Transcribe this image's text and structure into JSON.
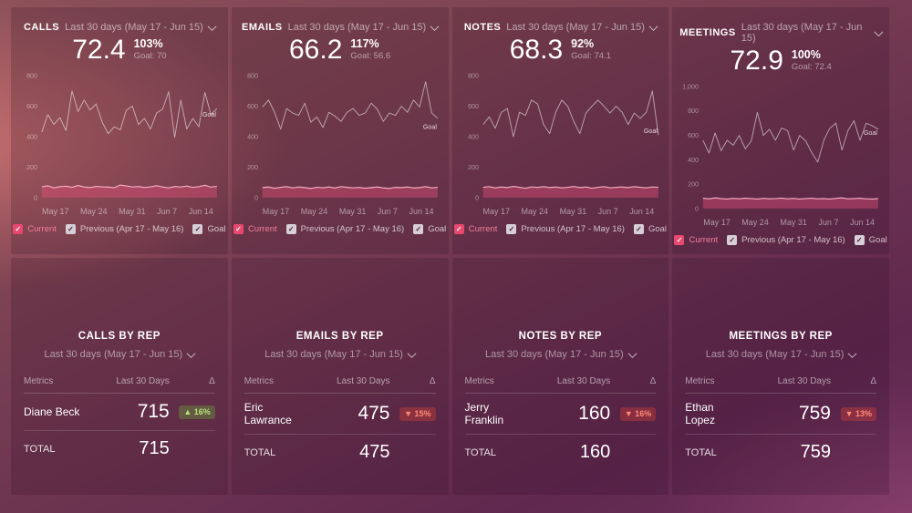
{
  "icons": {
    "check": "✓",
    "chevron_down": "⌄",
    "delta": "Δ"
  },
  "colors": {
    "accent_pink": "#e9486e",
    "current_line": "#f9aec3",
    "positive_badge_text": "#b7e27e",
    "negative_badge_text": "#ff8c76",
    "background_top": "#8b5058",
    "background_bottom": "#692e59"
  },
  "kpi_cards": [
    {
      "title": "CALLS",
      "date_range": "Last 30 days (May 17 - Jun 15) ",
      "value": "72.4",
      "percent": "103%",
      "goal_label": "Goal: 70",
      "legend": {
        "current": "Current",
        "previous": "Previous (Apr 17 - May 16)",
        "goal": "Goal"
      },
      "chart_data": {
        "type": "line",
        "x_labels": [
          "May 17",
          "May 24",
          "May 31",
          "Jun 7",
          "Jun 14"
        ],
        "ylim": [
          0,
          800
        ],
        "y_ticks": [
          {
            "label": "800",
            "value": 800
          },
          {
            "label": "600",
            "value": 600
          },
          {
            "label": "400",
            "value": 400
          },
          {
            "label": "200",
            "value": 200
          },
          {
            "label": "0",
            "value": 0
          }
        ],
        "goal_label": {
          "text": "Goal",
          "at_value": 530
        },
        "goal_value": 70,
        "series": [
          {
            "name": "Current",
            "values": [
              70,
              78,
              64,
              72,
              75,
              68,
              80,
              70,
              66,
              74,
              71,
              69,
              65,
              83,
              77,
              70,
              73,
              66,
              71,
              78,
              70,
              64,
              73,
              70,
              76,
              67,
              72,
              81,
              69,
              74
            ]
          },
          {
            "name": "Previous (Apr 17 - May 16)",
            "values": [
              430,
              545,
              480,
              525,
              440,
              700,
              565,
              640,
              575,
              615,
              495,
              420,
              465,
              445,
              575,
              600,
              480,
              520,
              450,
              555,
              580,
              695,
              395,
              640,
              450,
              520,
              465,
              690,
              545,
              585
            ]
          }
        ]
      }
    },
    {
      "title": "EMAILS",
      "date_range": "Last 30 days (May 17 - Jun 15) ",
      "value": "66.2",
      "percent": "117%",
      "goal_label": "Goal: 56.6",
      "legend": {
        "current": "Current",
        "previous": "Previous (Apr 17 - May 16)",
        "goal": "Goal"
      },
      "chart_data": {
        "type": "line",
        "x_labels": [
          "May 17",
          "May 24",
          "May 31",
          "Jun 7",
          "Jun 14"
        ],
        "ylim": [
          0,
          800
        ],
        "y_ticks": [
          {
            "label": "800",
            "value": 800
          },
          {
            "label": "600",
            "value": 600
          },
          {
            "label": "400",
            "value": 400
          },
          {
            "label": "200",
            "value": 200
          },
          {
            "label": "0",
            "value": 0
          }
        ],
        "goal_label": {
          "text": "Goal",
          "at_value": 450
        },
        "goal_value": 56.6,
        "series": [
          {
            "name": "Current",
            "values": [
              66,
              70,
              62,
              68,
              72,
              64,
              70,
              66,
              60,
              68,
              65,
              70,
              63,
              72,
              68,
              64,
              67,
              62,
              66,
              70,
              64,
              60,
              68,
              66,
              70,
              63,
              66,
              72,
              64,
              68
            ]
          },
          {
            "name": "Previous (Apr 17 - May 16)",
            "values": [
              595,
              640,
              560,
              450,
              585,
              555,
              540,
              620,
              495,
              530,
              460,
              560,
              535,
              500,
              560,
              585,
              540,
              555,
              620,
              580,
              500,
              555,
              540,
              600,
              560,
              640,
              595,
              760,
              555,
              520
            ]
          }
        ]
      }
    },
    {
      "title": "NOTES",
      "date_range": "Last 30 days (May 17 - Jun 15) ",
      "value": "68.3",
      "percent": "92%",
      "goal_label": "Goal: 74.1",
      "legend": {
        "current": "Current",
        "previous": "Previous (Apr 17 - May 16)",
        "goal": "Goal"
      },
      "chart_data": {
        "type": "line",
        "x_labels": [
          "May 17",
          "May 24",
          "May 31",
          "Jun 7",
          "Jun 14"
        ],
        "ylim": [
          0,
          800
        ],
        "y_ticks": [
          {
            "label": "800",
            "value": 800
          },
          {
            "label": "600",
            "value": 600
          },
          {
            "label": "400",
            "value": 400
          },
          {
            "label": "200",
            "value": 200
          },
          {
            "label": "0",
            "value": 0
          }
        ],
        "goal_label": {
          "text": "Goal",
          "at_value": 425
        },
        "goal_value": 74.1,
        "series": [
          {
            "name": "Current",
            "values": [
              68,
              72,
              64,
              70,
              66,
              74,
              68,
              62,
              70,
              67,
              72,
              66,
              70,
              64,
              68,
              73,
              66,
              70,
              62,
              68,
              72,
              64,
              68,
              70,
              66,
              72,
              68,
              64,
              70,
              68
            ]
          },
          {
            "name": "Previous (Apr 17 - May 16)",
            "values": [
              480,
              530,
              455,
              560,
              585,
              400,
              560,
              540,
              640,
              615,
              480,
              420,
              560,
              640,
              600,
              500,
              420,
              555,
              600,
              640,
              600,
              555,
              600,
              560,
              480,
              555,
              520,
              560,
              700,
              410
            ]
          }
        ]
      }
    },
    {
      "title": "MEETINGS",
      "date_range": "Last 30 days (May 17 - Jun 15) ",
      "value": "72.9",
      "percent": "100%",
      "goal_label": "Goal: 72.4",
      "legend": {
        "current": "Current",
        "previous": "Previous (Apr 17 - May 16)",
        "goal": "Goal"
      },
      "chart_data": {
        "type": "line",
        "x_labels": [
          "May 17",
          "May 24",
          "May 31",
          "Jun 7",
          "Jun 14"
        ],
        "ylim": [
          0,
          1000
        ],
        "y_ticks": [
          {
            "label": "1,000",
            "value": 1000
          },
          {
            "label": "800",
            "value": 800
          },
          {
            "label": "600",
            "value": 600
          },
          {
            "label": "400",
            "value": 400
          },
          {
            "label": "200",
            "value": 200
          },
          {
            "label": "0",
            "value": 0
          }
        ],
        "goal_label": {
          "text": "Goal",
          "at_value": 605
        },
        "goal_value": 72.4,
        "series": [
          {
            "name": "Current",
            "values": [
              85,
              80,
              88,
              82,
              78,
              84,
              80,
              86,
              82,
              78,
              84,
              80,
              82,
              86,
              80,
              84,
              78,
              82,
              85,
              80,
              82,
              78,
              84,
              88,
              80,
              82,
              85,
              80,
              78,
              82
            ]
          },
          {
            "name": "Previous (Apr 17 - May 16)",
            "values": [
              560,
              455,
              620,
              475,
              560,
              520,
              600,
              490,
              555,
              790,
              600,
              650,
              560,
              660,
              640,
              480,
              600,
              555,
              460,
              380,
              560,
              660,
              700,
              480,
              640,
              720,
              560,
              700,
              680,
              650
            ]
          }
        ]
      }
    }
  ],
  "rep_tables": [
    {
      "title": "CALLS BY REP",
      "date_range": "Last 30 days (May 17 - Jun 15)",
      "columns": [
        "Metrics",
        "Last 30 Days",
        "Δ"
      ],
      "rows": [
        {
          "name": "Diane Beck",
          "value": "715",
          "delta_label": "▲ 16%",
          "badge_class": "badge badge-up"
        }
      ],
      "total_label": "TOTAL",
      "total_value": "715"
    },
    {
      "title": "EMAILS BY REP",
      "date_range": "Last 30 days (May 17 - Jun 15)",
      "columns": [
        "Metrics",
        "Last 30 Days",
        "Δ"
      ],
      "rows": [
        {
          "name": "Eric Lawrance",
          "value": "475",
          "delta_label": "▼ 15%",
          "badge_class": "badge badge-down"
        }
      ],
      "total_label": "TOTAL",
      "total_value": "475"
    },
    {
      "title": "NOTES BY REP",
      "date_range": "Last 30 days (May 17 - Jun 15)",
      "columns": [
        "Metrics",
        "Last 30 Days",
        "Δ"
      ],
      "rows": [
        {
          "name": "Jerry Franklin",
          "value": "160",
          "delta_label": "▼ 16%",
          "badge_class": "badge badge-down"
        }
      ],
      "total_label": "TOTAL",
      "total_value": "160"
    },
    {
      "title": "MEETINGS BY REP",
      "date_range": "Last 30 days (May 17 - Jun 15)",
      "columns": [
        "Metrics",
        "Last 30 Days",
        "Δ"
      ],
      "rows": [
        {
          "name": "Ethan Lopez",
          "value": "759",
          "delta_label": "▼ 13%",
          "badge_class": "badge badge-down"
        }
      ],
      "total_label": "TOTAL",
      "total_value": "759"
    }
  ]
}
